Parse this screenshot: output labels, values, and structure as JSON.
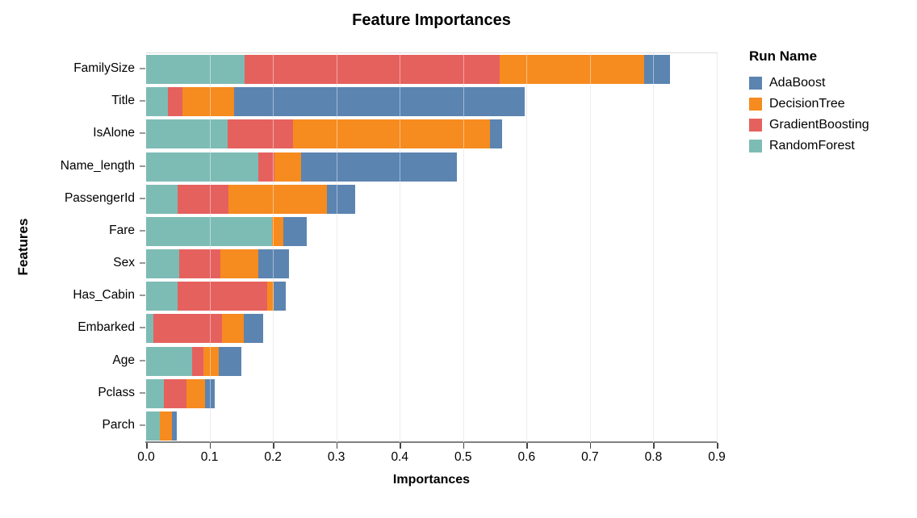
{
  "chart_data": {
    "type": "bar",
    "orientation": "horizontal",
    "stacked": true,
    "title": "Feature Importances",
    "xlabel": "Importances",
    "ylabel": "Features",
    "legend_title": "Run Name",
    "legend_position": "right",
    "grid": true,
    "xlim": [
      0.0,
      0.9
    ],
    "x_ticks": [
      "0.0",
      "0.1",
      "0.2",
      "0.3",
      "0.4",
      "0.5",
      "0.6",
      "0.7",
      "0.8",
      "0.9"
    ],
    "categories": [
      "FamilySize",
      "Title",
      "IsAlone",
      "Name_length",
      "PassengerId",
      "Fare",
      "Sex",
      "Has_Cabin",
      "Embarked",
      "Age",
      "Pclass",
      "Parch"
    ],
    "legend_order": [
      "AdaBoost",
      "DecisionTree",
      "GradientBoosting",
      "RandomForest"
    ],
    "stack_order": [
      "RandomForest",
      "GradientBoosting",
      "DecisionTree",
      "AdaBoost"
    ],
    "series": [
      {
        "name": "AdaBoost",
        "color": "#5b84b1",
        "values": [
          0.041,
          0.458,
          0.019,
          0.245,
          0.045,
          0.036,
          0.048,
          0.019,
          0.031,
          0.036,
          0.015,
          0.007
        ]
      },
      {
        "name": "DecisionTree",
        "color": "#f68b1f",
        "values": [
          0.228,
          0.082,
          0.31,
          0.043,
          0.155,
          0.019,
          0.06,
          0.01,
          0.034,
          0.023,
          0.029,
          0.019
        ]
      },
      {
        "name": "GradientBoosting",
        "color": "#e5615e",
        "values": [
          0.402,
          0.022,
          0.104,
          0.025,
          0.08,
          0.0,
          0.065,
          0.141,
          0.109,
          0.019,
          0.036,
          0.0
        ]
      },
      {
        "name": "RandomForest",
        "color": "#7dbcb5",
        "values": [
          0.155,
          0.035,
          0.128,
          0.177,
          0.05,
          0.198,
          0.052,
          0.05,
          0.011,
          0.072,
          0.028,
          0.022
        ]
      }
    ]
  },
  "colors": {
    "gridline": "#dcdcdc",
    "axis_line": "#808080",
    "text": "#000000"
  }
}
